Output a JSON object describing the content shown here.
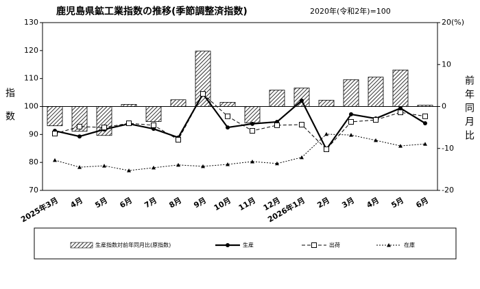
{
  "chart_data": {
    "type": "combo",
    "title": "鹿児島県鉱工業指数の推移(季節調整済指数)",
    "subtitle": "2020年(令和2年)=100",
    "y_label": "指数",
    "y2_label": "前年同月比",
    "categories": [
      "2025年3月",
      "4月",
      "5月",
      "6月",
      "7月",
      "8月",
      "9月",
      "10月",
      "11月",
      "12月",
      "2026年1月",
      "2月",
      "3月",
      "4月",
      "5月",
      "6月"
    ],
    "series": [
      {
        "name": "生産指数対前年同月比(原指数)",
        "type": "bar",
        "axis": "y2",
        "color": "#000000",
        "values": [
          -4.6,
          -5.9,
          -6.9,
          0.5,
          -3.6,
          1.6,
          13.2,
          1.0,
          -3.9,
          3.9,
          4.4,
          1.5,
          6.4,
          7.0,
          8.7,
          0.3
        ]
      },
      {
        "name": "生産",
        "type": "line",
        "color": "#000000",
        "dash": "solid",
        "marker": "circle",
        "values": [
          91.3,
          89.3,
          91.8,
          93.8,
          92.0,
          88.9,
          104.5,
          92.5,
          93.8,
          94.5,
          102.1,
          84.7,
          97.2,
          95.7,
          99.4,
          94.0
        ]
      },
      {
        "name": "出荷",
        "type": "line",
        "color": "#000000",
        "dash": "dashed",
        "marker": "square",
        "values": [
          90.3,
          92.8,
          92.5,
          94.0,
          93.3,
          88.1,
          104.5,
          96.5,
          91.3,
          93.3,
          93.5,
          84.7,
          94.5,
          95.2,
          97.9,
          96.5
        ]
      },
      {
        "name": "在庫",
        "type": "line",
        "color": "#000000",
        "dash": "dotted",
        "marker": "triangle",
        "values": [
          80.8,
          78.3,
          78.8,
          77.1,
          78.1,
          79.1,
          78.6,
          79.3,
          80.3,
          79.6,
          81.8,
          90.1,
          89.8,
          87.9,
          85.9,
          86.6
        ]
      }
    ],
    "ylim": [
      70,
      130
    ],
    "yticks": [
      70,
      80,
      90,
      100,
      110,
      120,
      130
    ],
    "y2lim": [
      -20,
      20
    ],
    "y2ticks": [
      -20,
      -10,
      0,
      10,
      {
        "value": 20,
        "label": "20(%)"
      }
    ],
    "legend": "bottom"
  }
}
